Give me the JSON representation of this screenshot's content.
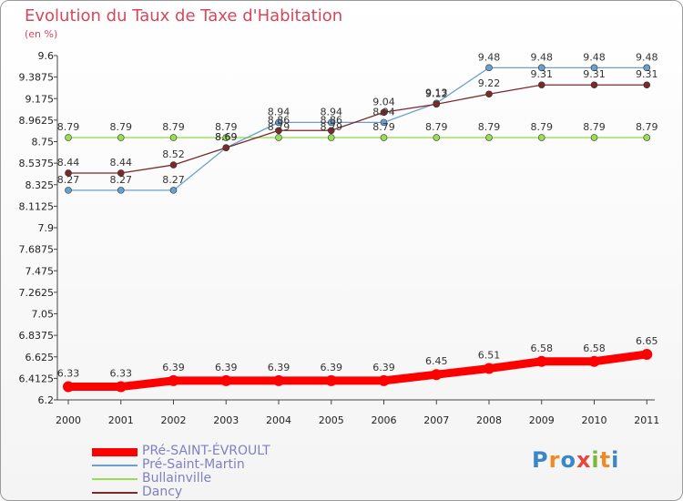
{
  "chart_data": {
    "type": "line",
    "title": "Evolution du Taux de Taxe d'Habitation",
    "unit": "(en %)",
    "x": [
      "2000",
      "2001",
      "2002",
      "2003",
      "2004",
      "2005",
      "2006",
      "2007",
      "2008",
      "2009",
      "2010",
      "2011"
    ],
    "ylim": [
      6.2,
      9.6
    ],
    "yticks": [
      "9.6",
      "9.3875",
      "9.175",
      "8.9625",
      "8.75",
      "8.5375",
      "8.325",
      "8.1125",
      "7.9",
      "7.6875",
      "7.475",
      "7.2625",
      "7.05",
      "6.8375",
      "6.625",
      "6.4125",
      "6.2"
    ],
    "grid": false,
    "legend_position": "bottom-left",
    "series": [
      {
        "name": "PRé-SAINT-ÉVROULT",
        "color": "#ff0000",
        "values": [
          6.33,
          6.33,
          6.39,
          6.39,
          6.39,
          6.39,
          6.39,
          6.45,
          6.51,
          6.58,
          6.58,
          6.65
        ]
      },
      {
        "name": "Pré-Saint-Martin",
        "color": "#6aa0d0",
        "values": [
          8.27,
          8.27,
          8.27,
          8.69,
          8.94,
          8.94,
          8.94,
          9.13,
          9.48,
          9.48,
          9.48,
          9.48
        ]
      },
      {
        "name": "Bullainville",
        "color": "#99dd55",
        "values": [
          8.79,
          8.79,
          8.79,
          8.79,
          8.79,
          8.79,
          8.79,
          8.79,
          8.79,
          8.79,
          8.79,
          8.79
        ]
      },
      {
        "name": "Dancy",
        "color": "#7a2a2a",
        "values": [
          8.44,
          8.44,
          8.52,
          8.69,
          8.86,
          8.86,
          9.04,
          9.12,
          9.22,
          9.31,
          9.31,
          9.31
        ]
      }
    ]
  },
  "brand": "Proxiti"
}
